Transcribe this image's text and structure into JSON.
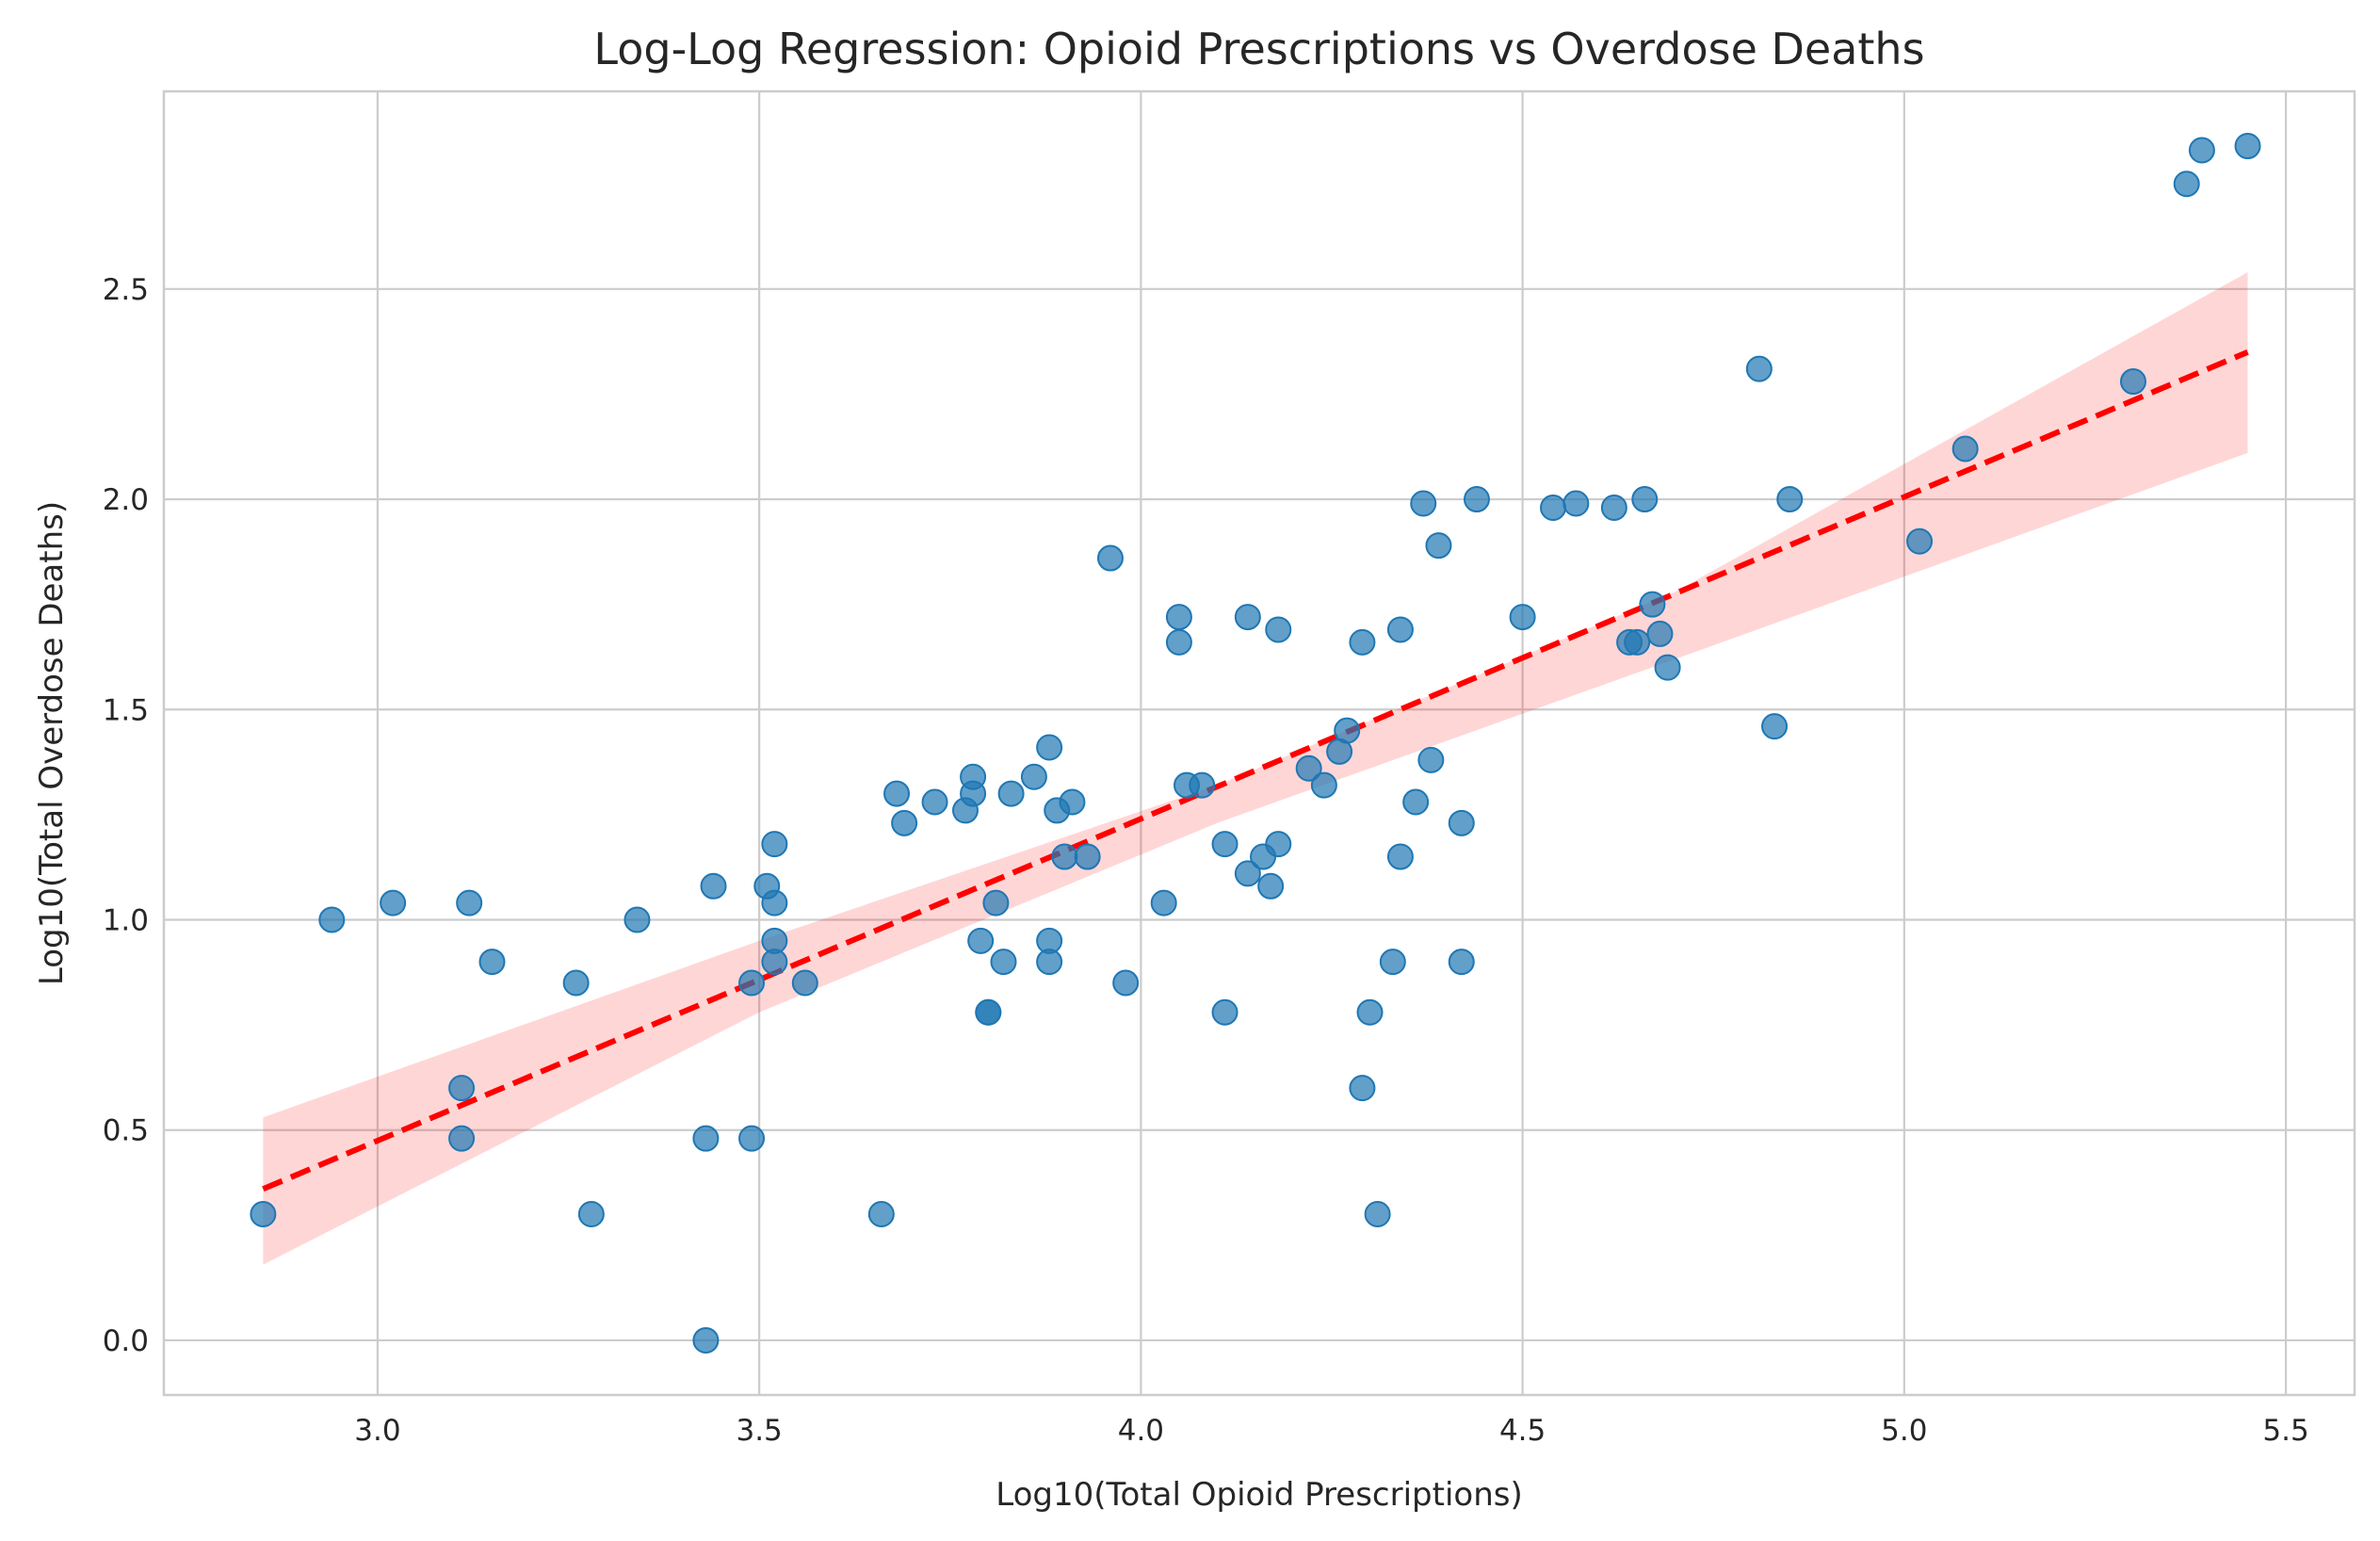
{
  "chart_data": {
    "type": "scatter",
    "title": "Log-Log Regression: Opioid Prescriptions vs Overdose Deaths",
    "xlabel": "Log10(Total Opioid Prescriptions)",
    "ylabel": "Log10(Total Overdose Deaths)",
    "xlim": [
      2.72,
      5.59
    ],
    "ylim": [
      -0.13,
      2.97
    ],
    "xticks": [
      3.0,
      3.5,
      4.0,
      4.5,
      5.0,
      5.5
    ],
    "xtick_labels": [
      "3.0",
      "3.5",
      "4.0",
      "4.5",
      "5.0",
      "5.5"
    ],
    "yticks": [
      0.0,
      0.5,
      1.0,
      1.5,
      2.0,
      2.5
    ],
    "ytick_labels": [
      "0.0",
      "0.5",
      "1.0",
      "1.5",
      "2.0",
      "2.5"
    ],
    "grid": true,
    "point_color": "#1f77b4",
    "line_color": "#ff0000",
    "band_color": "#ff0000",
    "regression_line": {
      "x": [
        2.85,
        5.45
      ],
      "y": [
        0.36,
        2.35
      ],
      "style": "dashed"
    },
    "confidence_band": {
      "x": [
        2.85,
        3.5,
        4.1,
        4.7,
        5.45
      ],
      "lower": [
        0.18,
        0.78,
        1.23,
        1.62,
        2.11
      ],
      "upper": [
        0.53,
        0.95,
        1.32,
        1.78,
        2.54
      ]
    },
    "points": [
      [
        2.85,
        0.3
      ],
      [
        2.94,
        1.0
      ],
      [
        3.02,
        1.04
      ],
      [
        3.11,
        0.6
      ],
      [
        3.11,
        0.48
      ],
      [
        3.12,
        1.04
      ],
      [
        3.15,
        0.9
      ],
      [
        3.26,
        0.85
      ],
      [
        3.28,
        0.3
      ],
      [
        3.34,
        1.0
      ],
      [
        3.43,
        0.48
      ],
      [
        3.43,
        0.0
      ],
      [
        3.44,
        1.08
      ],
      [
        3.49,
        0.48
      ],
      [
        3.49,
        0.85
      ],
      [
        3.51,
        1.08
      ],
      [
        3.52,
        1.04
      ],
      [
        3.52,
        0.9
      ],
      [
        3.52,
        0.95
      ],
      [
        3.52,
        1.18
      ],
      [
        3.56,
        0.85
      ],
      [
        3.66,
        0.3
      ],
      [
        3.68,
        1.3
      ],
      [
        3.69,
        1.23
      ],
      [
        3.73,
        1.28
      ],
      [
        3.77,
        1.26
      ],
      [
        3.78,
        1.34
      ],
      [
        3.78,
        1.3
      ],
      [
        3.79,
        0.95
      ],
      [
        3.8,
        0.78
      ],
      [
        3.8,
        0.78
      ],
      [
        3.81,
        1.04
      ],
      [
        3.82,
        0.9
      ],
      [
        3.83,
        1.3
      ],
      [
        3.86,
        1.34
      ],
      [
        3.88,
        1.41
      ],
      [
        3.88,
        0.95
      ],
      [
        3.88,
        0.9
      ],
      [
        3.89,
        1.26
      ],
      [
        3.9,
        1.15
      ],
      [
        3.91,
        1.28
      ],
      [
        3.93,
        1.15
      ],
      [
        3.96,
        1.86
      ],
      [
        3.98,
        0.85
      ],
      [
        4.03,
        1.04
      ],
      [
        4.05,
        1.66
      ],
      [
        4.05,
        1.72
      ],
      [
        4.06,
        1.32
      ],
      [
        4.08,
        1.32
      ],
      [
        4.11,
        0.78
      ],
      [
        4.11,
        1.18
      ],
      [
        4.14,
        1.72
      ],
      [
        4.14,
        1.11
      ],
      [
        4.16,
        1.15
      ],
      [
        4.17,
        1.08
      ],
      [
        4.18,
        1.69
      ],
      [
        4.18,
        1.18
      ],
      [
        4.22,
        1.36
      ],
      [
        4.24,
        1.32
      ],
      [
        4.26,
        1.4
      ],
      [
        4.27,
        1.45
      ],
      [
        4.29,
        1.66
      ],
      [
        4.29,
        0.6
      ],
      [
        4.3,
        0.78
      ],
      [
        4.31,
        0.3
      ],
      [
        4.33,
        0.9
      ],
      [
        4.34,
        1.15
      ],
      [
        4.34,
        1.69
      ],
      [
        4.36,
        1.28
      ],
      [
        4.37,
        1.99
      ],
      [
        4.38,
        1.38
      ],
      [
        4.39,
        1.89
      ],
      [
        4.42,
        1.23
      ],
      [
        4.42,
        0.9
      ],
      [
        4.44,
        2.0
      ],
      [
        4.5,
        1.72
      ],
      [
        4.54,
        1.98
      ],
      [
        4.57,
        1.99
      ],
      [
        4.62,
        1.98
      ],
      [
        4.64,
        1.66
      ],
      [
        4.65,
        1.66
      ],
      [
        4.66,
        2.0
      ],
      [
        4.67,
        1.75
      ],
      [
        4.68,
        1.68
      ],
      [
        4.69,
        1.6
      ],
      [
        4.81,
        2.31
      ],
      [
        4.83,
        1.46
      ],
      [
        4.85,
        2.0
      ],
      [
        5.02,
        1.9
      ],
      [
        5.08,
        2.12
      ],
      [
        5.3,
        2.28
      ],
      [
        5.37,
        2.75
      ],
      [
        5.39,
        2.83
      ],
      [
        5.45,
        2.84
      ]
    ]
  }
}
